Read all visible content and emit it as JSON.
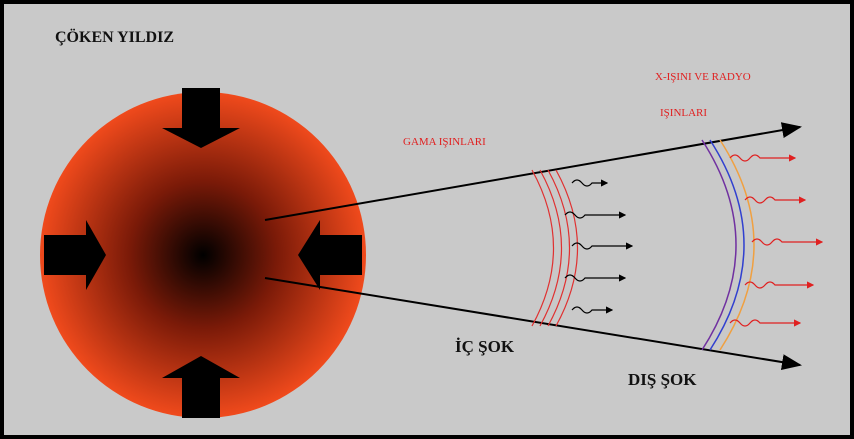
{
  "title": "ÇÖKEN YILDIZ",
  "labels": {
    "gamma": "GAMA IŞINLARI",
    "xray_line1": "X-IŞINI VE RADYO",
    "xray_line2": "IŞINLARI",
    "inner_shock": "İÇ ŞOK",
    "outer_shock": "DIŞ ŞOK"
  }
}
